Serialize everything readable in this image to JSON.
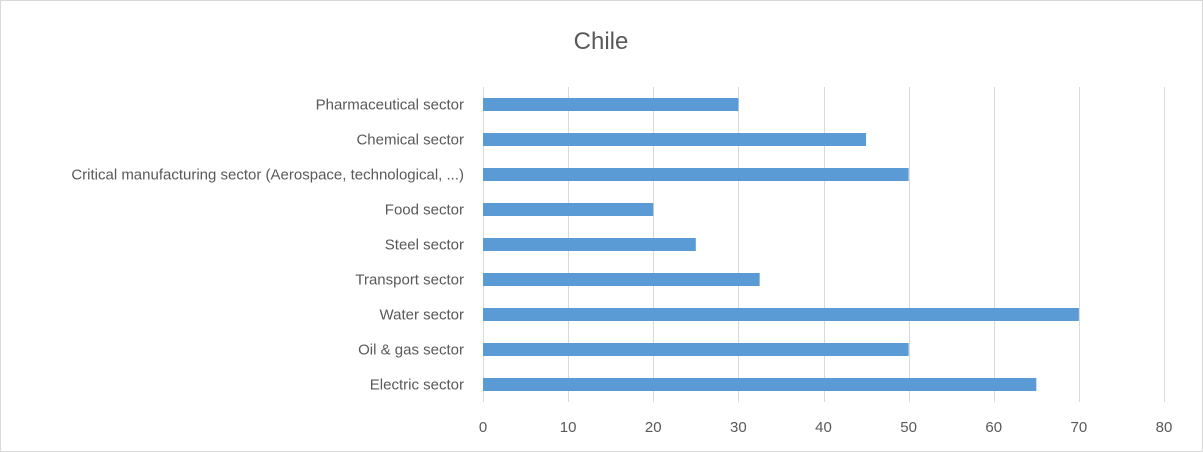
{
  "chart_data": {
    "type": "bar",
    "orientation": "horizontal",
    "title": "Chile",
    "xlabel": "",
    "ylabel": "",
    "categories": [
      "Electric sector",
      "Oil & gas sector",
      "Water sector",
      "Transport sector",
      "Steel sector",
      "Food sector",
      "Critical manufacturing sector (Aerospace, technological, ...)",
      "Chemical sector",
      "Pharmaceutical sector"
    ],
    "values": [
      65,
      50,
      70,
      32.5,
      25,
      20,
      50,
      45,
      30
    ],
    "xlim": [
      0,
      80
    ],
    "xticks": [
      0,
      10,
      20,
      30,
      40,
      50,
      60,
      70,
      80
    ],
    "grid": "vertical",
    "legend": "none",
    "bar_color": "#5b9bd5"
  }
}
